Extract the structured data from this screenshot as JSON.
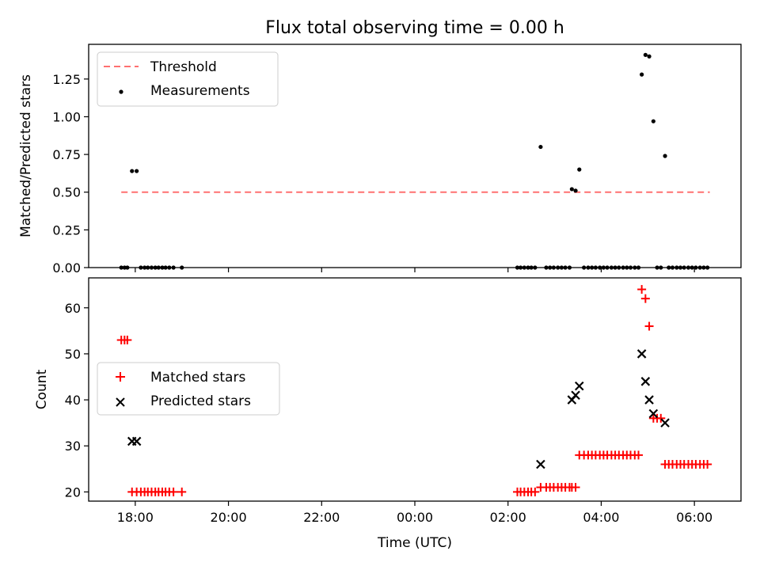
{
  "figure": {
    "title": "Flux total observing time = 0.00 h",
    "xlabel": "Time (UTC)"
  },
  "colors": {
    "threshold": "#ff7070",
    "measurements": "#000000",
    "matched": "#ff0000",
    "predicted": "#000000"
  },
  "chart_data": [
    {
      "type": "scatter",
      "title": "Flux total observing time = 0.00 h",
      "xlabel": "",
      "ylabel": "Matched/Predicted stars",
      "x_unit": "hours after 00:00 UTC of first night",
      "xlim": [
        17.0,
        31.0
      ],
      "ylim": [
        0.0,
        1.48
      ],
      "yticks": [
        0.0,
        0.25,
        0.5,
        0.75,
        1.0,
        1.25
      ],
      "ytick_labels": [
        "0.00",
        "0.25",
        "0.50",
        "0.75",
        "1.00",
        "1.25"
      ],
      "legend_position": "top-left",
      "grid": false,
      "series": [
        {
          "name": "Threshold",
          "kind": "line-dashed",
          "x": [
            17.7,
            30.33
          ],
          "y": [
            0.5,
            0.5
          ]
        },
        {
          "name": "Measurements",
          "kind": "dot",
          "points": [
            [
              17.7,
              0.0
            ],
            [
              17.77,
              0.0
            ],
            [
              17.83,
              0.0
            ],
            [
              17.93,
              0.64
            ],
            [
              18.03,
              0.64
            ],
            [
              18.12,
              0.0
            ],
            [
              18.2,
              0.0
            ],
            [
              18.27,
              0.0
            ],
            [
              18.35,
              0.0
            ],
            [
              18.43,
              0.0
            ],
            [
              18.5,
              0.0
            ],
            [
              18.58,
              0.0
            ],
            [
              18.65,
              0.0
            ],
            [
              18.73,
              0.0
            ],
            [
              18.82,
              0.0
            ],
            [
              19.0,
              0.0
            ],
            [
              26.2,
              0.0
            ],
            [
              26.27,
              0.0
            ],
            [
              26.35,
              0.0
            ],
            [
              26.43,
              0.0
            ],
            [
              26.5,
              0.0
            ],
            [
              26.58,
              0.0
            ],
            [
              26.7,
              0.8
            ],
            [
              26.82,
              0.0
            ],
            [
              26.9,
              0.0
            ],
            [
              26.98,
              0.0
            ],
            [
              27.07,
              0.0
            ],
            [
              27.15,
              0.0
            ],
            [
              27.23,
              0.0
            ],
            [
              27.32,
              0.0
            ],
            [
              27.37,
              0.52
            ],
            [
              27.45,
              0.51
            ],
            [
              27.53,
              0.65
            ],
            [
              27.63,
              0.0
            ],
            [
              27.72,
              0.0
            ],
            [
              27.8,
              0.0
            ],
            [
              27.88,
              0.0
            ],
            [
              27.97,
              0.0
            ],
            [
              28.05,
              0.0
            ],
            [
              28.13,
              0.0
            ],
            [
              28.22,
              0.0
            ],
            [
              28.3,
              0.0
            ],
            [
              28.38,
              0.0
            ],
            [
              28.47,
              0.0
            ],
            [
              28.55,
              0.0
            ],
            [
              28.63,
              0.0
            ],
            [
              28.72,
              0.0
            ],
            [
              28.8,
              0.0
            ],
            [
              28.87,
              1.28
            ],
            [
              28.95,
              1.41
            ],
            [
              29.03,
              1.4
            ],
            [
              29.12,
              0.97
            ],
            [
              29.2,
              0.0
            ],
            [
              29.28,
              0.0
            ],
            [
              29.37,
              0.74
            ],
            [
              29.45,
              0.0
            ],
            [
              29.53,
              0.0
            ],
            [
              29.62,
              0.0
            ],
            [
              29.7,
              0.0
            ],
            [
              29.78,
              0.0
            ],
            [
              29.87,
              0.0
            ],
            [
              29.95,
              0.0
            ],
            [
              30.03,
              0.0
            ],
            [
              30.12,
              0.0
            ],
            [
              30.2,
              0.0
            ],
            [
              30.28,
              0.0
            ]
          ]
        }
      ]
    },
    {
      "type": "scatter",
      "title": "",
      "xlabel": "Time (UTC)",
      "ylabel": "Count",
      "x_unit": "hours after 00:00 UTC of first night",
      "xlim": [
        17.0,
        31.0
      ],
      "ylim": [
        18.0,
        66.5
      ],
      "yticks": [
        20,
        30,
        40,
        50,
        60
      ],
      "ytick_labels": [
        "20",
        "30",
        "40",
        "50",
        "60"
      ],
      "xticks": [
        18,
        20,
        22,
        24,
        26,
        28,
        30
      ],
      "xtick_labels": [
        "18:00",
        "20:00",
        "22:00",
        "00:00",
        "02:00",
        "04:00",
        "06:00"
      ],
      "legend_position": "center-left",
      "grid": false,
      "series": [
        {
          "name": "Matched stars",
          "marker": "+",
          "points": [
            [
              17.7,
              53
            ],
            [
              17.77,
              53
            ],
            [
              17.83,
              53
            ],
            [
              17.93,
              20
            ],
            [
              18.03,
              20
            ],
            [
              18.12,
              20
            ],
            [
              18.2,
              20
            ],
            [
              18.27,
              20
            ],
            [
              18.35,
              20
            ],
            [
              18.43,
              20
            ],
            [
              18.5,
              20
            ],
            [
              18.58,
              20
            ],
            [
              18.65,
              20
            ],
            [
              18.73,
              20
            ],
            [
              18.82,
              20
            ],
            [
              19.0,
              20
            ],
            [
              26.2,
              20
            ],
            [
              26.27,
              20
            ],
            [
              26.35,
              20
            ],
            [
              26.43,
              20
            ],
            [
              26.5,
              20
            ],
            [
              26.58,
              20
            ],
            [
              26.7,
              21
            ],
            [
              26.82,
              21
            ],
            [
              26.9,
              21
            ],
            [
              26.98,
              21
            ],
            [
              27.07,
              21
            ],
            [
              27.15,
              21
            ],
            [
              27.23,
              21
            ],
            [
              27.32,
              21
            ],
            [
              27.37,
              21
            ],
            [
              27.45,
              21
            ],
            [
              27.53,
              28
            ],
            [
              27.63,
              28
            ],
            [
              27.72,
              28
            ],
            [
              27.8,
              28
            ],
            [
              27.88,
              28
            ],
            [
              27.97,
              28
            ],
            [
              28.05,
              28
            ],
            [
              28.13,
              28
            ],
            [
              28.22,
              28
            ],
            [
              28.3,
              28
            ],
            [
              28.38,
              28
            ],
            [
              28.47,
              28
            ],
            [
              28.55,
              28
            ],
            [
              28.63,
              28
            ],
            [
              28.72,
              28
            ],
            [
              28.8,
              28
            ],
            [
              28.87,
              64
            ],
            [
              28.95,
              62
            ],
            [
              29.03,
              56
            ],
            [
              29.12,
              36
            ],
            [
              29.2,
              36
            ],
            [
              29.28,
              36
            ],
            [
              29.37,
              26
            ],
            [
              29.45,
              26
            ],
            [
              29.53,
              26
            ],
            [
              29.62,
              26
            ],
            [
              29.7,
              26
            ],
            [
              29.78,
              26
            ],
            [
              29.87,
              26
            ],
            [
              29.95,
              26
            ],
            [
              30.03,
              26
            ],
            [
              30.12,
              26
            ],
            [
              30.2,
              26
            ],
            [
              30.28,
              26
            ]
          ]
        },
        {
          "name": "Predicted stars",
          "marker": "x",
          "points": [
            [
              17.93,
              31
            ],
            [
              18.03,
              31
            ],
            [
              26.7,
              26
            ],
            [
              27.37,
              40
            ],
            [
              27.45,
              41
            ],
            [
              27.53,
              43
            ],
            [
              28.87,
              50
            ],
            [
              28.95,
              44
            ],
            [
              29.03,
              40
            ],
            [
              29.12,
              37
            ],
            [
              29.37,
              35
            ]
          ]
        }
      ]
    }
  ]
}
